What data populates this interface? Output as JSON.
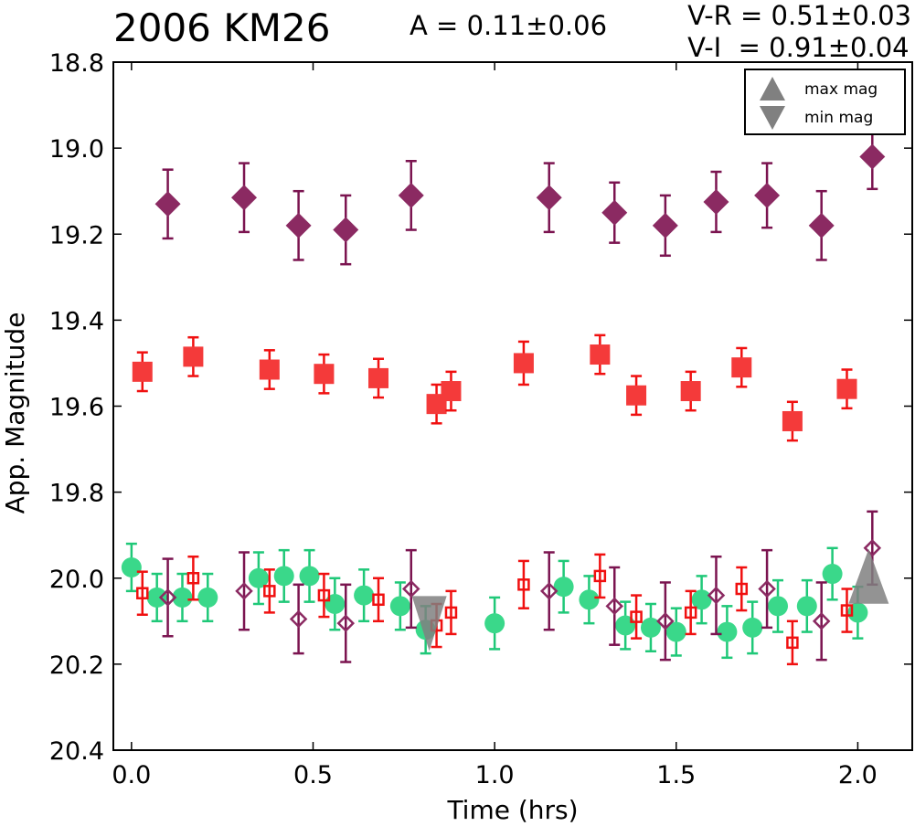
{
  "header": {
    "title": "2006 KM26",
    "amplitude": "A  = 0.11±0.06",
    "color_vr": "V-R = 0.51±0.03",
    "color_vi": "V-I  = 0.91±0.04"
  },
  "chart_data": {
    "type": "scatter",
    "title": "2006 KM26",
    "xlabel": "Time (hrs)",
    "ylabel": "App. Magnitude",
    "xlim": [
      -0.05,
      2.15
    ],
    "ylim": [
      20.4,
      18.8
    ],
    "y_inverted": true,
    "xticks": [
      "0.0",
      "0.5",
      "1.0",
      "1.5",
      "2.0"
    ],
    "yticks": [
      "18.8",
      "19.0",
      "19.2",
      "19.4",
      "19.6",
      "19.8",
      "20.0",
      "20.2",
      "20.4"
    ],
    "legend": {
      "placement": "top-right",
      "entries": [
        {
          "label": "max mag",
          "marker": "triangle-up",
          "color": "#808080"
        },
        {
          "label": "min mag",
          "marker": "triangle-down",
          "color": "#808080"
        }
      ]
    },
    "colors": {
      "purple": "#7b1450",
      "purple_fill": "#8b2a62",
      "red": "#f01010",
      "red_fill": "#f43a3a",
      "green": "#1fc878",
      "green_fill": "#3ad88a",
      "marker_gray": "#808080"
    },
    "series": [
      {
        "marker": "diamond",
        "filled": true,
        "color": "#8b2a62",
        "points": [
          [
            0.1,
            19.13,
            0.08
          ],
          [
            0.31,
            19.115,
            0.08
          ],
          [
            0.46,
            19.18,
            0.08
          ],
          [
            0.59,
            19.19,
            0.08
          ],
          [
            0.77,
            19.11,
            0.08
          ],
          [
            1.15,
            19.115,
            0.08
          ],
          [
            1.33,
            19.15,
            0.07
          ],
          [
            1.47,
            19.18,
            0.07
          ],
          [
            1.61,
            19.125,
            0.07
          ],
          [
            1.75,
            19.11,
            0.075
          ],
          [
            1.9,
            19.18,
            0.08
          ],
          [
            2.04,
            19.02,
            0.075
          ]
        ]
      },
      {
        "marker": "square",
        "filled": true,
        "color": "#f43a3a",
        "points": [
          [
            0.03,
            19.52,
            0.045
          ],
          [
            0.17,
            19.485,
            0.045
          ],
          [
            0.38,
            19.515,
            0.045
          ],
          [
            0.53,
            19.525,
            0.045
          ],
          [
            0.68,
            19.535,
            0.045
          ],
          [
            0.84,
            19.595,
            0.045
          ],
          [
            0.88,
            19.565,
            0.045
          ],
          [
            1.08,
            19.5,
            0.05
          ],
          [
            1.29,
            19.48,
            0.045
          ],
          [
            1.39,
            19.575,
            0.045
          ],
          [
            1.54,
            19.565,
            0.045
          ],
          [
            1.68,
            19.51,
            0.045
          ],
          [
            1.82,
            19.635,
            0.045
          ],
          [
            1.97,
            19.56,
            0.045
          ]
        ]
      },
      {
        "marker": "circle",
        "filled": true,
        "color": "#3ad88a",
        "points": [
          [
            0.0,
            19.975,
            0.055
          ],
          [
            0.07,
            20.045,
            0.055
          ],
          [
            0.14,
            20.045,
            0.055
          ],
          [
            0.21,
            20.045,
            0.055
          ],
          [
            0.35,
            20.0,
            0.06
          ],
          [
            0.42,
            19.995,
            0.06
          ],
          [
            0.49,
            19.995,
            0.06
          ],
          [
            0.56,
            20.06,
            0.06
          ],
          [
            0.64,
            20.04,
            0.06
          ],
          [
            0.74,
            20.065,
            0.055
          ],
          [
            0.81,
            20.12,
            0.055
          ],
          [
            1.0,
            20.105,
            0.06
          ],
          [
            1.19,
            20.02,
            0.06
          ],
          [
            1.26,
            20.05,
            0.055
          ],
          [
            1.36,
            20.11,
            0.055
          ],
          [
            1.43,
            20.115,
            0.055
          ],
          [
            1.5,
            20.125,
            0.055
          ],
          [
            1.57,
            20.05,
            0.055
          ],
          [
            1.64,
            20.125,
            0.06
          ],
          [
            1.71,
            20.115,
            0.06
          ],
          [
            1.78,
            20.065,
            0.06
          ],
          [
            1.86,
            20.065,
            0.06
          ],
          [
            1.93,
            19.99,
            0.06
          ],
          [
            2.0,
            20.08,
            0.06
          ]
        ]
      },
      {
        "marker": "diamond",
        "filled": false,
        "color": "#8b2a62",
        "points": [
          [
            0.1,
            20.045,
            0.09
          ],
          [
            0.31,
            20.03,
            0.09
          ],
          [
            0.46,
            20.095,
            0.08
          ],
          [
            0.59,
            20.105,
            0.09
          ],
          [
            0.77,
            20.025,
            0.09
          ],
          [
            1.15,
            20.03,
            0.09
          ],
          [
            1.33,
            20.065,
            0.09
          ],
          [
            1.47,
            20.1,
            0.09
          ],
          [
            1.61,
            20.04,
            0.09
          ],
          [
            1.75,
            20.025,
            0.09
          ],
          [
            1.9,
            20.1,
            0.09
          ],
          [
            2.04,
            19.93,
            0.085
          ]
        ]
      },
      {
        "marker": "square",
        "filled": false,
        "color": "#f01010",
        "points": [
          [
            0.03,
            20.035,
            0.05
          ],
          [
            0.17,
            20.0,
            0.05
          ],
          [
            0.38,
            20.03,
            0.05
          ],
          [
            0.53,
            20.04,
            0.05
          ],
          [
            0.68,
            20.05,
            0.05
          ],
          [
            0.84,
            20.11,
            0.05
          ],
          [
            0.88,
            20.08,
            0.05
          ],
          [
            1.08,
            20.015,
            0.055
          ],
          [
            1.29,
            19.995,
            0.05
          ],
          [
            1.39,
            20.09,
            0.05
          ],
          [
            1.54,
            20.08,
            0.05
          ],
          [
            1.68,
            20.025,
            0.05
          ],
          [
            1.82,
            20.15,
            0.05
          ],
          [
            1.97,
            20.075,
            0.05
          ]
        ]
      },
      {
        "marker": "triangle-down",
        "filled": true,
        "color": "#808080",
        "points": [
          [
            0.82,
            20.08,
            0
          ]
        ]
      },
      {
        "marker": "triangle-up",
        "filled": true,
        "color": "#808080",
        "points": [
          [
            2.03,
            20.0,
            0
          ]
        ]
      }
    ]
  }
}
